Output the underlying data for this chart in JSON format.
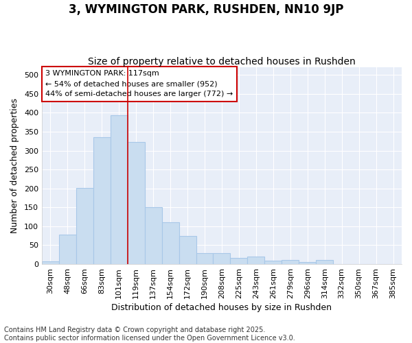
{
  "title": "3, WYMINGTON PARK, RUSHDEN, NN10 9JP",
  "subtitle": "Size of property relative to detached houses in Rushden",
  "xlabel": "Distribution of detached houses by size in Rushden",
  "ylabel": "Number of detached properties",
  "footer_line1": "Contains HM Land Registry data © Crown copyright and database right 2025.",
  "footer_line2": "Contains public sector information licensed under the Open Government Licence v3.0.",
  "categories": [
    "30sqm",
    "48sqm",
    "66sqm",
    "83sqm",
    "101sqm",
    "119sqm",
    "137sqm",
    "154sqm",
    "172sqm",
    "190sqm",
    "208sqm",
    "225sqm",
    "243sqm",
    "261sqm",
    "279sqm",
    "296sqm",
    "314sqm",
    "332sqm",
    "350sqm",
    "367sqm",
    "385sqm"
  ],
  "values": [
    8,
    78,
    202,
    336,
    393,
    322,
    150,
    110,
    75,
    29,
    29,
    17,
    20,
    9,
    11,
    5,
    11,
    1,
    1,
    0,
    1
  ],
  "bar_color": "#c9ddf0",
  "bar_edge_color": "#a8c8e8",
  "vline_x_index": 5,
  "vline_color": "#cc0000",
  "annotation_box_text": "3 WYMINGTON PARK: 117sqm\n← 54% of detached houses are smaller (952)\n44% of semi-detached houses are larger (772) →",
  "annotation_box_color": "#ffffff",
  "annotation_border_color": "#cc0000",
  "ylim": [
    0,
    520
  ],
  "yticks": [
    0,
    50,
    100,
    150,
    200,
    250,
    300,
    350,
    400,
    450,
    500
  ],
  "background_color": "#e8eef8",
  "grid_color": "#ffffff",
  "fig_bg_color": "#ffffff",
  "title_fontsize": 12,
  "subtitle_fontsize": 10,
  "axis_label_fontsize": 9,
  "tick_fontsize": 8,
  "annotation_fontsize": 8,
  "footer_fontsize": 7
}
